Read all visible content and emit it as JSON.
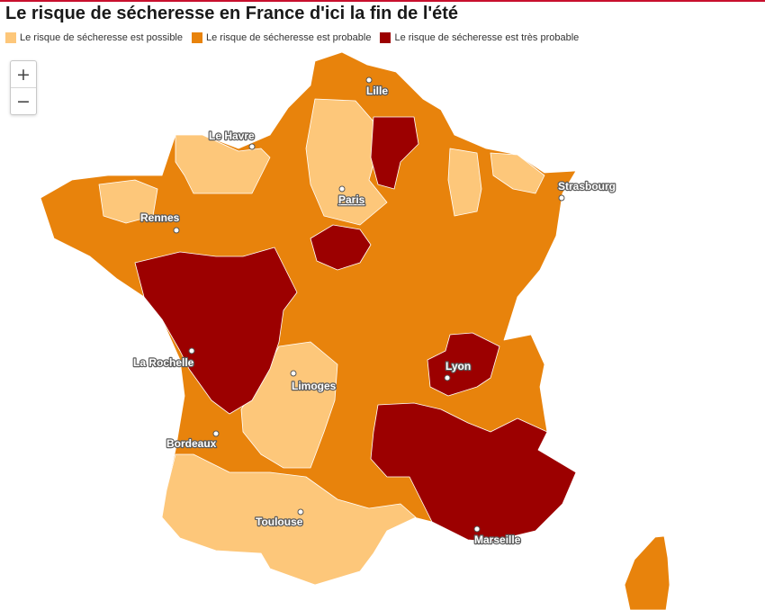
{
  "title": "Le risque de sécheresse en France d'ici la fin de l'été",
  "legend": [
    {
      "label": "Le risque de sécheresse est possible",
      "color": "#fdc77a"
    },
    {
      "label": "Le risque de sécheresse est probable",
      "color": "#e8830c"
    },
    {
      "label": "Le risque de sécheresse est très probable",
      "color": "#9c0000"
    }
  ],
  "zoom": {
    "in": "+",
    "out": "−"
  },
  "cities": {
    "lille": "Lille",
    "le_havre": "Le Havre",
    "paris": "Paris",
    "strasbourg": "Strasbourg",
    "rennes": "Rennes",
    "la_rochelle": "La Rochelle",
    "limoges": "Limoges",
    "lyon": "Lyon",
    "bordeaux": "Bordeaux",
    "toulouse": "Toulouse",
    "marseille": "Marseille"
  }
}
